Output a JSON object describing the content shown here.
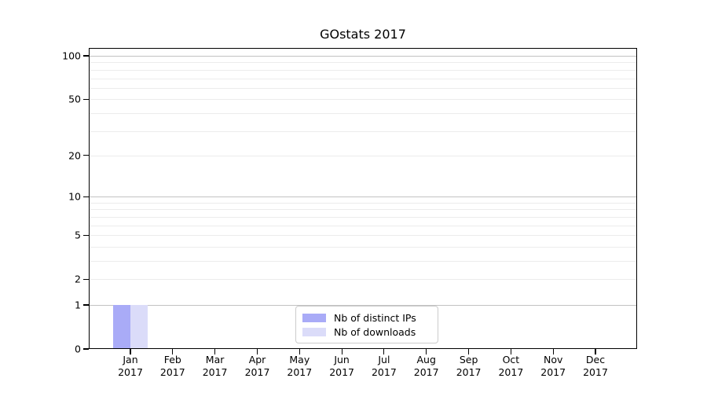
{
  "chart_data": {
    "type": "bar",
    "title": "GOstats 2017",
    "x_categories": [
      "Jan",
      "Feb",
      "Mar",
      "Apr",
      "May",
      "Jun",
      "Jul",
      "Aug",
      "Sep",
      "Oct",
      "Nov",
      "Dec"
    ],
    "x_sublabel": "2017",
    "series": [
      {
        "name": "Nb of distinct IPs",
        "color": "#a9abf7",
        "values": [
          1,
          0,
          0,
          0,
          0,
          0,
          0,
          0,
          0,
          0,
          0,
          0
        ]
      },
      {
        "name": "Nb of downloads",
        "color": "#dbdcf9",
        "values": [
          1,
          0,
          0,
          0,
          0,
          0,
          0,
          0,
          0,
          0,
          0,
          0
        ]
      }
    ],
    "xlabel": "",
    "ylabel": "",
    "y_scale": "log1p",
    "ylim": [
      0,
      113
    ],
    "y_tick_labels": [
      "0",
      "1",
      "2",
      "5",
      "10",
      "20",
      "50",
      "100"
    ],
    "y_ticks": [
      0,
      1,
      2,
      5,
      10,
      20,
      50,
      100
    ],
    "y_major_gridlines": [
      1,
      10,
      100
    ],
    "y_minor_gridlines": [
      2,
      3,
      4,
      5,
      6,
      7,
      8,
      9,
      20,
      30,
      40,
      50,
      60,
      70,
      80,
      90
    ],
    "grid": true,
    "legend_position": "lower center",
    "colors": {
      "background": "#ffffff",
      "axis": "#000000",
      "major_grid": "#c2c2c2",
      "minor_grid": "#ececec",
      "text": "#000000"
    }
  }
}
